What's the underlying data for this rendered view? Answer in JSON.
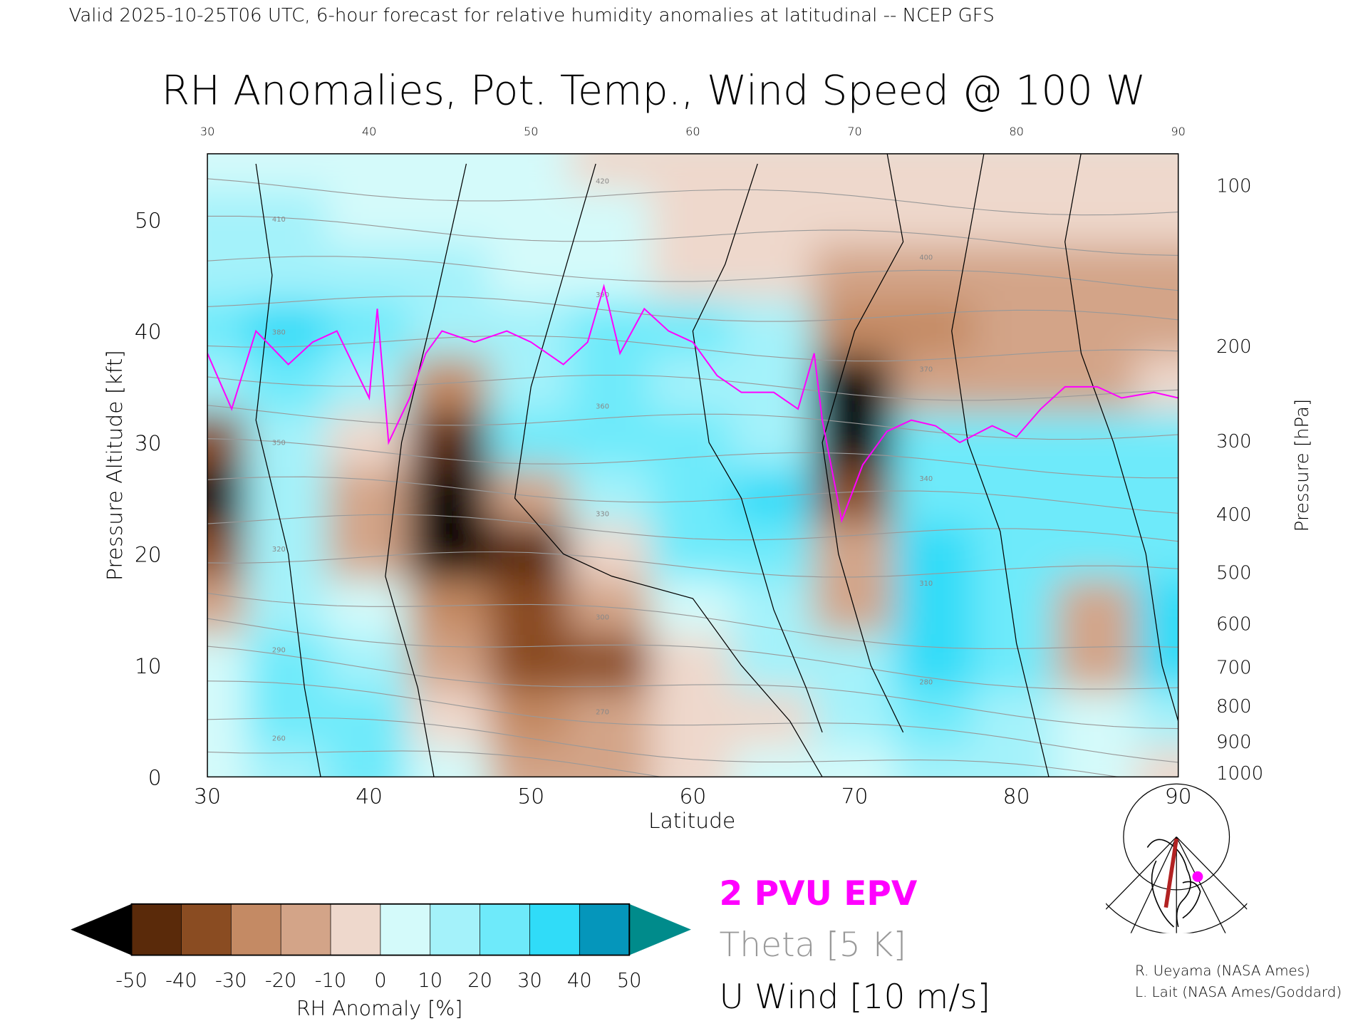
{
  "header": {
    "valid_line": "Valid 2025-10-25T06 UTC, 6-hour forecast for relative humidity anomalies at latitudinal -- NCEP GFS",
    "title": "RH Anomalies, Pot. Temp., Wind Speed @ 100 W"
  },
  "legend": {
    "pvu_label": "2 PVU EPV",
    "theta_label": "Theta [5 K]",
    "wind_label": "U Wind [10 m/s]",
    "colorbar_label": "RH Anomaly [%]",
    "colorbar_ticks": [
      "-50",
      "-40",
      "-30",
      "-20",
      "-10",
      "0",
      "10",
      "20",
      "30",
      "40",
      "50"
    ],
    "colors": {
      "below": "#000000",
      "bins": [
        "#5a2a0a",
        "#8a4c22",
        "#c48a64",
        "#d3a488",
        "#eed8cc",
        "#d4fafa",
        "#a4f2fa",
        "#6eeafa",
        "#30dcf8",
        "#0596bb"
      ],
      "above": "#008b8b",
      "pvu": "#ff00ff",
      "theta": "#999999",
      "wind": "#000000"
    }
  },
  "credits": {
    "line1": "R. Ueyama (NASA Ames)",
    "line2": "L. Lait (NASA Ames/Goddard)"
  },
  "chart_data": {
    "type": "heatmap",
    "title": "RH Anomalies, Pot. Temp., Wind Speed @ 100 W",
    "xlabel": "Latitude",
    "ylabel": "Pressure Altitude [kft]",
    "y2label": "Pressure [hPa]",
    "xlim": [
      30,
      90
    ],
    "ylim": [
      0,
      55.9
    ],
    "x_ticks": [
      "30",
      "40",
      "50",
      "60",
      "70",
      "80",
      "90"
    ],
    "y_ticks": [
      "0",
      "10",
      "20",
      "30",
      "40",
      "50"
    ],
    "pressure_ticks": [
      {
        "label": "100",
        "kft": 53.1
      },
      {
        "label": "200",
        "kft": 38.7
      },
      {
        "label": "300",
        "kft": 30.2
      },
      {
        "label": "400",
        "kft": 23.6
      },
      {
        "label": "500",
        "kft": 18.4
      },
      {
        "label": "600",
        "kft": 13.8
      },
      {
        "label": "700",
        "kft": 9.9
      },
      {
        "label": "800",
        "kft": 6.4
      },
      {
        "label": "900",
        "kft": 3.2
      },
      {
        "label": "1000",
        "kft": 0.4
      }
    ],
    "lat": [
      30,
      35,
      40,
      45,
      50,
      55,
      60,
      65,
      70,
      75,
      80,
      85,
      90
    ],
    "alt_kft": [
      55,
      50,
      45,
      40,
      35,
      30,
      25,
      20,
      15,
      10,
      5,
      0
    ],
    "rh_anomaly": [
      [
        5,
        5,
        5,
        3,
        0,
        -3,
        -5,
        -5,
        -5,
        -5,
        -5,
        -5,
        -5
      ],
      [
        10,
        10,
        8,
        5,
        3,
        0,
        -3,
        -5,
        -5,
        -8,
        -8,
        -8,
        -8
      ],
      [
        15,
        10,
        10,
        10,
        5,
        0,
        -5,
        -8,
        -15,
        -15,
        -15,
        -15,
        -15
      ],
      [
        20,
        30,
        20,
        15,
        15,
        25,
        20,
        10,
        -30,
        -25,
        -20,
        -20,
        -20
      ],
      [
        10,
        20,
        10,
        -30,
        15,
        20,
        15,
        10,
        -55,
        -15,
        -15,
        -15,
        -10
      ],
      [
        -40,
        15,
        -10,
        -50,
        20,
        20,
        25,
        15,
        -60,
        20,
        20,
        20,
        20
      ],
      [
        -55,
        15,
        -20,
        -60,
        -20,
        15,
        25,
        30,
        -40,
        25,
        25,
        20,
        20
      ],
      [
        -40,
        10,
        -20,
        -60,
        -45,
        -10,
        20,
        25,
        -20,
        30,
        25,
        20,
        25
      ],
      [
        -20,
        15,
        0,
        -30,
        -40,
        -20,
        0,
        10,
        -20,
        30,
        20,
        -20,
        30
      ],
      [
        0,
        20,
        10,
        -20,
        -35,
        -40,
        -10,
        10,
        10,
        30,
        20,
        -20,
        30
      ],
      [
        5,
        20,
        25,
        -10,
        -30,
        -20,
        -10,
        -5,
        10,
        25,
        15,
        5,
        15
      ],
      [
        5,
        15,
        25,
        5,
        -20,
        -20,
        -10,
        0,
        5,
        15,
        10,
        0,
        -5
      ]
    ],
    "pvu_2_line": [
      [
        30,
        38
      ],
      [
        31.5,
        33
      ],
      [
        33,
        40
      ],
      [
        35,
        37
      ],
      [
        36.5,
        39
      ],
      [
        38,
        40
      ],
      [
        40,
        34
      ],
      [
        40.5,
        42
      ],
      [
        41.2,
        30
      ],
      [
        42.5,
        34
      ],
      [
        43.5,
        38
      ],
      [
        44.5,
        40
      ],
      [
        46.5,
        39
      ],
      [
        48.5,
        40
      ],
      [
        50,
        39
      ],
      [
        52,
        37
      ],
      [
        53.5,
        39
      ],
      [
        54.5,
        44
      ],
      [
        55.5,
        38
      ],
      [
        57,
        42
      ],
      [
        58.5,
        40
      ],
      [
        60,
        39
      ],
      [
        61.5,
        36
      ],
      [
        63,
        34.5
      ],
      [
        65,
        34.5
      ],
      [
        66.5,
        33
      ],
      [
        67.5,
        38
      ],
      [
        68,
        32
      ],
      [
        69.2,
        23
      ],
      [
        70.5,
        28
      ],
      [
        72,
        31
      ],
      [
        73.5,
        32
      ],
      [
        75,
        31.5
      ],
      [
        76.5,
        30
      ],
      [
        78.5,
        31.5
      ],
      [
        80,
        30.5
      ],
      [
        81.5,
        33
      ],
      [
        83,
        35
      ],
      [
        85,
        35
      ],
      [
        86.5,
        34
      ],
      [
        88.5,
        34.5
      ],
      [
        90,
        34
      ]
    ],
    "theta_levels_K": [
      260,
      270,
      280,
      290,
      300,
      310,
      320,
      330,
      340,
      350,
      360,
      370,
      380,
      390,
      400,
      410,
      420
    ],
    "u_wind_levels_ms": [
      0,
      10,
      30
    ]
  }
}
